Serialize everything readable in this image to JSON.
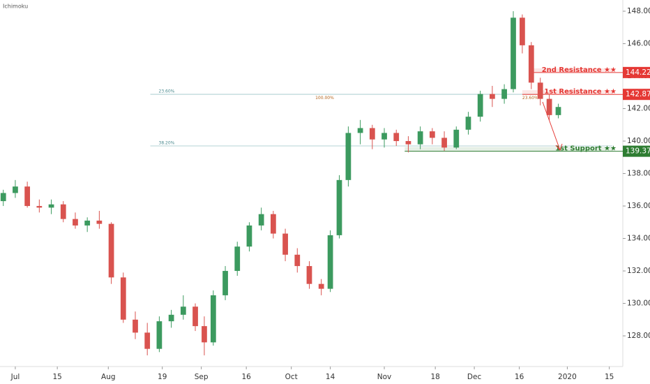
{
  "chart_data": {
    "type": "candlestick",
    "title": "Ichimoku",
    "x": [
      -4,
      0,
      4,
      8,
      12,
      16,
      20,
      24,
      28,
      32,
      36,
      40,
      44,
      48,
      52,
      56,
      60,
      63,
      66,
      70,
      74,
      78,
      82,
      86,
      90,
      94,
      98,
      102,
      105,
      108,
      111,
      115,
      119,
      123,
      127,
      131,
      135,
      139,
      143,
      147,
      151,
      155,
      159,
      163,
      166,
      169,
      172,
      175,
      178,
      181
    ],
    "open": [
      136.3,
      136.8,
      137.2,
      136.0,
      135.9,
      136.1,
      135.2,
      134.8,
      135.1,
      134.9,
      131.6,
      129.0,
      128.2,
      127.2,
      128.9,
      129.3,
      129.8,
      128.6,
      127.6,
      130.5,
      132.0,
      133.5,
      134.8,
      135.5,
      134.3,
      133.0,
      132.3,
      131.2,
      130.9,
      134.2,
      137.6,
      140.5,
      140.8,
      140.1,
      140.5,
      140.0,
      139.8,
      140.6,
      140.2,
      139.6,
      140.7,
      141.5,
      142.9,
      142.6,
      143.2,
      147.6,
      145.9,
      143.6,
      142.6,
      141.6
    ],
    "high": [
      137.0,
      137.6,
      137.5,
      136.4,
      136.4,
      136.3,
      135.6,
      135.3,
      135.7,
      135.0,
      131.9,
      129.5,
      128.8,
      129.2,
      129.6,
      130.5,
      130.0,
      129.2,
      130.8,
      132.3,
      133.8,
      135.0,
      135.9,
      135.7,
      134.6,
      133.4,
      132.6,
      131.5,
      134.5,
      137.9,
      140.9,
      141.3,
      141.0,
      140.8,
      140.7,
      140.3,
      140.9,
      140.8,
      140.6,
      140.9,
      141.8,
      143.1,
      143.4,
      143.5,
      148.0,
      147.8,
      146.1,
      143.9,
      142.9,
      142.3
    ],
    "low": [
      136.0,
      136.5,
      135.9,
      135.6,
      135.5,
      135.0,
      134.6,
      134.4,
      134.6,
      131.2,
      128.8,
      127.8,
      126.8,
      127.0,
      128.5,
      129.0,
      128.3,
      126.8,
      127.4,
      130.2,
      131.7,
      133.2,
      134.5,
      134.0,
      132.6,
      131.9,
      130.9,
      130.5,
      130.7,
      134.0,
      137.2,
      139.8,
      139.5,
      139.6,
      139.7,
      139.3,
      139.5,
      139.8,
      139.4,
      139.5,
      140.4,
      141.2,
      142.1,
      142.3,
      143.0,
      145.4,
      143.2,
      142.2,
      141.3,
      141.4
    ],
    "close": [
      136.8,
      137.2,
      136.0,
      135.9,
      136.1,
      135.2,
      134.8,
      135.1,
      134.9,
      131.6,
      129.0,
      128.2,
      127.2,
      128.9,
      129.3,
      129.8,
      128.6,
      127.6,
      130.5,
      132.0,
      133.5,
      134.8,
      135.5,
      134.3,
      133.0,
      132.3,
      131.2,
      130.9,
      134.2,
      137.6,
      140.5,
      140.8,
      140.1,
      140.5,
      140.0,
      139.8,
      140.6,
      140.2,
      139.6,
      140.7,
      141.5,
      142.9,
      142.6,
      143.2,
      147.6,
      145.9,
      143.6,
      142.6,
      141.6,
      142.1
    ],
    "up_color": "#3c9a5f",
    "down_color": "#d9534f",
    "xlim": [
      -5.1,
      202.5
    ],
    "xticks": [
      {
        "value": 0,
        "label": "Jul"
      },
      {
        "value": 14,
        "label": "15"
      },
      {
        "value": 31,
        "label": "Aug"
      },
      {
        "value": 49,
        "label": "19"
      },
      {
        "value": 62,
        "label": "Sep"
      },
      {
        "value": 77,
        "label": "16"
      },
      {
        "value": 92,
        "label": "Oct"
      },
      {
        "value": 105,
        "label": "14"
      },
      {
        "value": 123,
        "label": "Nov"
      },
      {
        "value": 140,
        "label": "18"
      },
      {
        "value": 153,
        "label": "Dec"
      },
      {
        "value": 168,
        "label": "16"
      },
      {
        "value": 184,
        "label": "2020"
      },
      {
        "value": 198,
        "label": "15"
      }
    ],
    "ylim": [
      126.11,
      148.69
    ],
    "yticks": [
      {
        "value": 128,
        "label": "128.000"
      },
      {
        "value": 130,
        "label": "130.000"
      },
      {
        "value": 132,
        "label": "132.000"
      },
      {
        "value": 134,
        "label": "134.000"
      },
      {
        "value": 136,
        "label": "136.000"
      },
      {
        "value": 138,
        "label": "138.000"
      },
      {
        "value": 140,
        "label": "140.000"
      },
      {
        "value": 142,
        "label": "142.000"
      },
      {
        "value": 144,
        "label": "144.000"
      },
      {
        "value": 146,
        "label": "146.000"
      },
      {
        "value": 148,
        "label": "148.000"
      }
    ],
    "levels": [
      {
        "name": "2nd Resistance ★★",
        "value": 144.223,
        "color": "#e53935",
        "x_start": 171.5
      },
      {
        "name": "1st Resistance ★★",
        "value": 142.875,
        "color": "#e53935",
        "x_start": 169
      },
      {
        "name": "1st Support ★★",
        "value": 139.374,
        "color": "#2e7d32",
        "x_start": 129.8
      }
    ],
    "fib_lines": [
      {
        "label": "23.60%",
        "value": 142.88,
        "x_start": 45,
        "x_end": 178
      },
      {
        "label": "38.20%",
        "value": 139.7,
        "x_start": 45,
        "x_end": 199
      }
    ],
    "annotations": [
      {
        "text": "100.00%",
        "x": 100,
        "y": 142.65
      },
      {
        "text": "23.60%",
        "x": 169,
        "y": 142.65
      }
    ]
  }
}
